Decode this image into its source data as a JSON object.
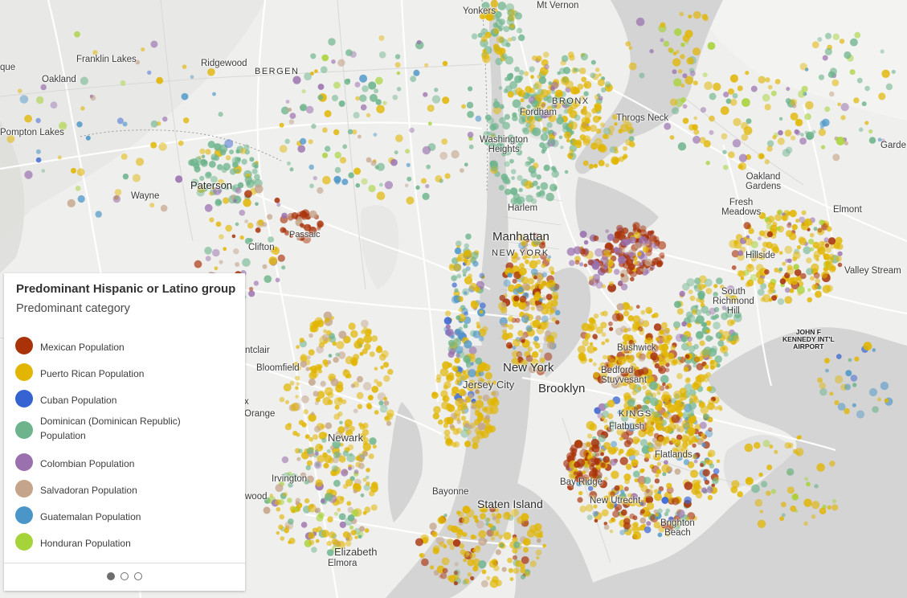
{
  "legend": {
    "title": "Predominant Hispanic or Latino group",
    "subtitle": "Predominant category",
    "items": [
      {
        "label": "Mexican Population",
        "color": "#a93209"
      },
      {
        "label": "Puerto Rican Population",
        "color": "#e1b500"
      },
      {
        "label": "Cuban Population",
        "color": "#3563d2"
      },
      {
        "label": "Dominican (Dominican Republic)",
        "label2": "Population",
        "color": "#6db48c"
      },
      {
        "label": "Colombian Population",
        "color": "#9a70ae"
      },
      {
        "label": "Salvadoran Population",
        "color": "#c4a48a"
      },
      {
        "label": "Guatemalan Population",
        "color": "#4b96c8"
      },
      {
        "label": "Honduran Population",
        "color": "#a7d33a"
      }
    ],
    "pager": {
      "pages": 3,
      "current": 1
    }
  },
  "places": {
    "yonkers": "Yonkers",
    "mt_vernon": "Mt Vernon",
    "franklin_lakes": "Franklin Lakes",
    "ridgewood": "Ridgewood",
    "bergen": "BERGEN",
    "que": "que",
    "oakland": "Oakland",
    "pompton_lakes": "Pompton Lakes",
    "bronx": "BRONX",
    "fordham": "Fordham",
    "throgs_neck": "Throgs Neck",
    "washington_heights_1": "Washington",
    "washington_heights_2": "Heights",
    "paterson": "Paterson",
    "wayne": "Wayne",
    "passaic": "Passaic",
    "clifton": "Clifton",
    "harlem": "Harlem",
    "manhattan": "Manhattan",
    "new_york_county": "NEW YORK",
    "oakland_gardens_1": "Oakland",
    "oakland_gardens_2": "Gardens",
    "fresh_meadows_1": "Fresh",
    "fresh_meadows_2": "Meadows",
    "elmont": "Elmont",
    "garden": "Garde",
    "hillside": "Hillside",
    "valley_stream": "Valley Stream",
    "south_richmond_hill_1": "South",
    "south_richmond_hill_2": "Richmond",
    "south_richmond_hill_3": "Hill",
    "jfk_1": "JOHN F",
    "jfk_2": "KENNEDY INT'L",
    "jfk_3": "AIRPORT",
    "montclair": "ntclair",
    "bloomfield": "Bloomfield",
    "new_york": "New York",
    "jersey_city": "Jersey City",
    "brooklyn": "Brooklyn",
    "bushwick": "Bushwick",
    "bedford_1": "Bedford",
    "bedford_2": "Stuyvesant",
    "kings": "KINGS",
    "flatbush": "Flatbush",
    "orange_x": "x",
    "orange": "Orange",
    "newark": "Newark",
    "irvington": "Irvington",
    "flatlands": "Flatlands",
    "bay_ridge": "Bay Ridge",
    "bayonne": "Bayonne",
    "staten_island": "Staten Island",
    "new_utrecht": "New Utrecht",
    "brighton_1": "Brighton",
    "brighton_2": "Beach",
    "wood": "wood",
    "elizabeth": "Elizabeth",
    "elmora": "Elmora"
  }
}
